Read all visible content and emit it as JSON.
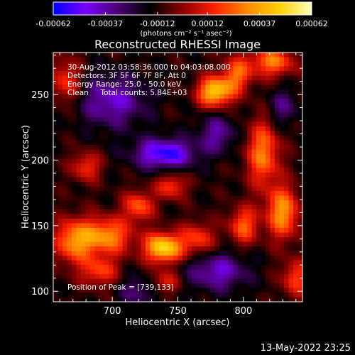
{
  "chart_data": {
    "type": "heatmap",
    "title": "Reconstructed RHESSI Image",
    "xlabel": "Heliocentric X (arcsec)",
    "ylabel": "Heliocentric Y (arcsec)",
    "xlim": [
      655,
      845
    ],
    "ylim": [
      92,
      282
    ],
    "x_ticks": [
      "700",
      "750",
      "800"
    ],
    "y_ticks": [
      "100",
      "150",
      "200",
      "250"
    ],
    "colorbar": {
      "ticks": [
        "-0.00062",
        "-0.00037",
        "-0.00012",
        "0.00012",
        "0.00037",
        "0.00062"
      ],
      "unit_label": "(photons cm⁻² s⁻¹ asec⁻²)",
      "range": [
        -0.00062,
        0.00062
      ],
      "colors": [
        "#0000ff",
        "#7a00ff",
        "#4a0070",
        "#000000",
        "#8a0000",
        "#ff2000",
        "#ff8a00",
        "#ffd000",
        "#ffffc0"
      ]
    },
    "annotations": [
      "30-Aug-2012 03:58:36.000 to 04:03:08.000",
      "Detectors: 3F 5F 6F 7F 8F, Att 0",
      "Energy Range: 25.0 - 50.0 keV",
      "Clean     Total counts: 5.84E+03"
    ],
    "peak_label": "Position of Peak = [739,133]",
    "peak": [
      739,
      133
    ],
    "sources": [
      {
        "x": 739,
        "y": 133,
        "amp": 0.00062,
        "sx": 10,
        "sy": 8
      },
      {
        "x": 778,
        "y": 252,
        "amp": 0.00058,
        "sx": 9,
        "sy": 8
      },
      {
        "x": 795,
        "y": 265,
        "amp": 0.00035,
        "sx": 8,
        "sy": 10
      },
      {
        "x": 822,
        "y": 275,
        "amp": 0.0004,
        "sx": 12,
        "sy": 8
      },
      {
        "x": 695,
        "y": 142,
        "amp": 0.00045,
        "sx": 14,
        "sy": 10
      },
      {
        "x": 670,
        "y": 138,
        "amp": 0.0004,
        "sx": 10,
        "sy": 12
      },
      {
        "x": 720,
        "y": 165,
        "amp": 0.00035,
        "sx": 8,
        "sy": 8
      },
      {
        "x": 745,
        "y": 180,
        "amp": 0.0003,
        "sx": 8,
        "sy": 7
      },
      {
        "x": 815,
        "y": 205,
        "amp": 0.0004,
        "sx": 9,
        "sy": 18
      },
      {
        "x": 830,
        "y": 160,
        "amp": 0.00045,
        "sx": 9,
        "sy": 14
      },
      {
        "x": 800,
        "y": 150,
        "amp": 0.00035,
        "sx": 8,
        "sy": 10
      },
      {
        "x": 765,
        "y": 140,
        "amp": 0.0003,
        "sx": 9,
        "sy": 9
      },
      {
        "x": 690,
        "y": 115,
        "amp": 0.0003,
        "sx": 10,
        "sy": 8
      },
      {
        "x": 665,
        "y": 260,
        "amp": 0.0003,
        "sx": 8,
        "sy": 12
      },
      {
        "x": 680,
        "y": 195,
        "amp": 0.00028,
        "sx": 8,
        "sy": 8
      },
      {
        "x": 740,
        "y": 107,
        "amp": 0.00025,
        "sx": 8,
        "sy": 6
      },
      {
        "x": 840,
        "y": 110,
        "amp": 0.0003,
        "sx": 8,
        "sy": 10
      },
      {
        "x": 780,
        "y": 220,
        "amp": -0.00025,
        "sx": 10,
        "sy": 10
      },
      {
        "x": 740,
        "y": 205,
        "amp": -0.00045,
        "sx": 16,
        "sy": 8
      },
      {
        "x": 700,
        "y": 245,
        "amp": -0.0003,
        "sx": 18,
        "sy": 14
      },
      {
        "x": 780,
        "y": 115,
        "amp": -0.0003,
        "sx": 16,
        "sy": 10
      },
      {
        "x": 720,
        "y": 100,
        "amp": -0.0002,
        "sx": 10,
        "sy": 8
      },
      {
        "x": 830,
        "y": 240,
        "amp": -0.0002,
        "sx": 8,
        "sy": 10
      }
    ]
  },
  "footer": {
    "timestamp": "13-May-2022 23:25"
  }
}
